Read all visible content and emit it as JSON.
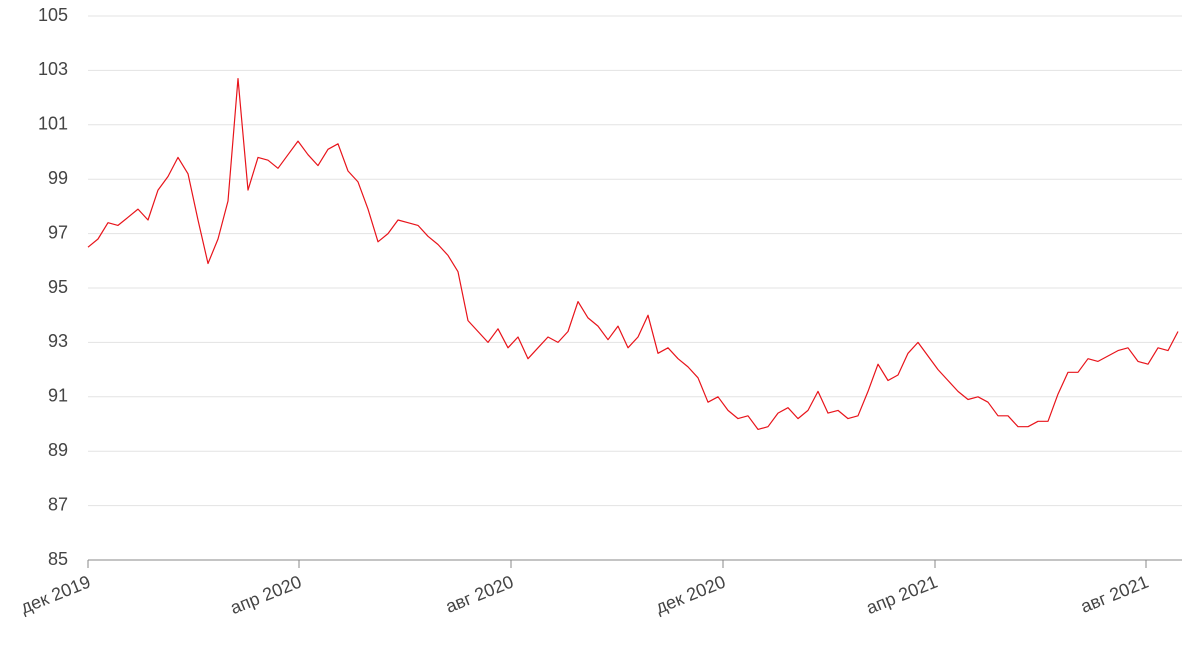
{
  "chart_data": {
    "type": "line",
    "categories": [
      null,
      null,
      null,
      null,
      null,
      null,
      null,
      null,
      null,
      null,
      null,
      null,
      null,
      null,
      null,
      null,
      null,
      null,
      null,
      null,
      null,
      null,
      null,
      null,
      null,
      null,
      null,
      null,
      null,
      null,
      null,
      null,
      null,
      null,
      null,
      null,
      null,
      null,
      null,
      null,
      null,
      null,
      null,
      null,
      null,
      null,
      null,
      null,
      null,
      null,
      null,
      null,
      null,
      null,
      null,
      null,
      null,
      null,
      null,
      null,
      null,
      null,
      null,
      null,
      null,
      null,
      null,
      null,
      null,
      null,
      null,
      null,
      null,
      null,
      null,
      null,
      null,
      null,
      null,
      null,
      null,
      null,
      null,
      null,
      null,
      null,
      null,
      null,
      null,
      null,
      null,
      null,
      null,
      null,
      null,
      null,
      null,
      null,
      null,
      null,
      null,
      null,
      null,
      null,
      null,
      null,
      null,
      null,
      null,
      null
    ],
    "values": [
      96.5,
      96.8,
      97.4,
      97.3,
      97.6,
      97.9,
      97.5,
      98.6,
      99.1,
      99.8,
      99.2,
      97.5,
      95.9,
      96.8,
      98.2,
      102.7,
      98.6,
      99.8,
      99.7,
      99.4,
      99.9,
      100.4,
      99.9,
      99.5,
      100.1,
      100.3,
      99.3,
      98.9,
      97.9,
      96.7,
      97.0,
      97.5,
      97.4,
      97.3,
      96.9,
      96.6,
      96.2,
      95.6,
      93.8,
      93.4,
      93.0,
      93.5,
      92.8,
      93.2,
      92.4,
      92.8,
      93.2,
      93.0,
      93.4,
      94.5,
      93.9,
      93.6,
      93.1,
      93.6,
      92.8,
      93.2,
      94.0,
      92.6,
      92.8,
      92.4,
      92.1,
      91.7,
      90.8,
      91.0,
      90.5,
      90.2,
      90.3,
      89.8,
      89.9,
      90.4,
      90.6,
      90.2,
      90.5,
      91.2,
      90.4,
      90.5,
      90.2,
      90.3,
      91.2,
      92.2,
      91.6,
      91.8,
      92.6,
      93.0,
      92.5,
      92.0,
      91.6,
      91.2,
      90.9,
      91.0,
      90.8,
      90.3,
      90.3,
      89.9,
      89.9,
      90.1,
      90.1,
      91.1,
      91.9,
      91.9,
      92.4,
      92.3,
      92.5,
      92.7,
      92.8,
      92.3,
      92.2,
      92.8,
      92.7,
      93.4
    ],
    "color": "#e8141b",
    "xlim": [
      0,
      109
    ],
    "xticks": [
      {
        "value": 0,
        "label": "дек 2019"
      },
      {
        "value": 21.1,
        "label": "апр 2020"
      },
      {
        "value": 42.3,
        "label": "авг 2020"
      },
      {
        "value": 63.5,
        "label": "дек 2020"
      },
      {
        "value": 84.7,
        "label": "апр 2021"
      },
      {
        "value": 105.8,
        "label": "авг 2021"
      }
    ],
    "ylim": [
      85,
      105
    ],
    "yticks": [
      85,
      87,
      89,
      91,
      93,
      95,
      97,
      99,
      101,
      103,
      105
    ],
    "grid": true
  }
}
